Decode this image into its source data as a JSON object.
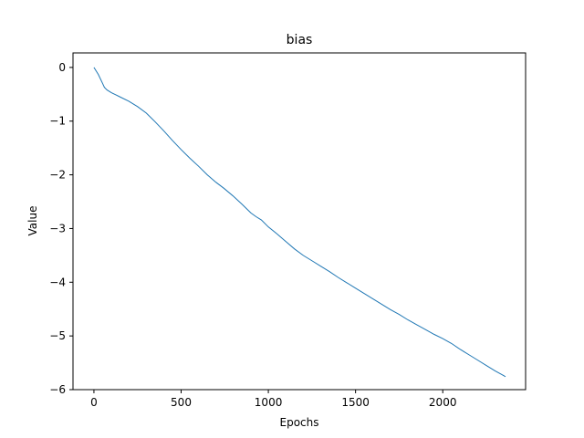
{
  "chart_data": {
    "type": "line",
    "title": "bias",
    "xlabel": "Epochs",
    "ylabel": "Value",
    "xlim": [
      -120,
      2475
    ],
    "ylim": [
      -6,
      0.27
    ],
    "xticks": [
      0,
      500,
      1000,
      1500,
      2000
    ],
    "yticks": [
      0,
      -1,
      -2,
      -3,
      -4,
      -5,
      -6
    ],
    "xtick_labels": [
      "0",
      "500",
      "1000",
      "1500",
      "2000"
    ],
    "ytick_labels": [
      "0",
      "−1",
      "−2",
      "−3",
      "−4",
      "−5",
      "−6"
    ],
    "grid": false,
    "series": [
      {
        "color": "#1f77b4",
        "x": [
          0,
          25,
          50,
          60,
          75,
          100,
          150,
          200,
          250,
          300,
          350,
          400,
          450,
          500,
          550,
          600,
          650,
          700,
          745,
          800,
          850,
          900,
          930,
          960,
          1000,
          1050,
          1100,
          1150,
          1200,
          1250,
          1300,
          1350,
          1400,
          1450,
          1500,
          1550,
          1600,
          1650,
          1700,
          1750,
          1800,
          1850,
          1900,
          1950,
          2000,
          2050,
          2100,
          2150,
          2200,
          2250,
          2300,
          2350,
          2360
        ],
        "y": [
          0,
          -0.13,
          -0.3,
          -0.37,
          -0.42,
          -0.47,
          -0.55,
          -0.63,
          -0.73,
          -0.85,
          -1.01,
          -1.18,
          -1.36,
          -1.53,
          -1.69,
          -1.84,
          -2.0,
          -2.14,
          -2.25,
          -2.4,
          -2.55,
          -2.71,
          -2.78,
          -2.84,
          -2.97,
          -3.1,
          -3.24,
          -3.38,
          -3.5,
          -3.6,
          -3.7,
          -3.8,
          -3.91,
          -4.01,
          -4.11,
          -4.21,
          -4.31,
          -4.41,
          -4.51,
          -4.6,
          -4.7,
          -4.79,
          -4.88,
          -4.97,
          -5.05,
          -5.14,
          -5.25,
          -5.35,
          -5.45,
          -5.55,
          -5.65,
          -5.74,
          -5.76
        ]
      }
    ]
  }
}
